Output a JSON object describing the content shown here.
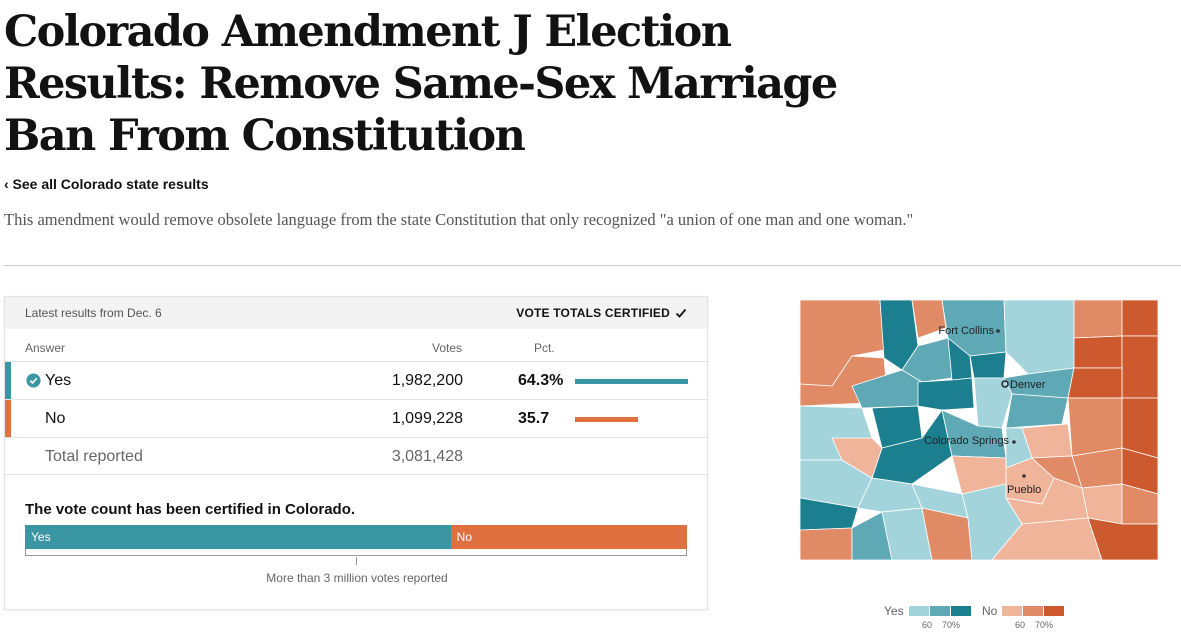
{
  "headline": "Colorado Amendment J Election Results: Remove Same-Sex Marriage Ban From Constitution",
  "back_link": "‹ See all Colorado state results",
  "summary": "This amendment would remove obsolete language from the state Constitution that only recognized \"a union of one man and one woman.\"",
  "card": {
    "latest": "Latest results from Dec. 6",
    "certified_label": "VOTE TOTALS CERTIFIED",
    "columns": {
      "answer": "Answer",
      "votes": "Votes",
      "pct": "Pct."
    },
    "rows": [
      {
        "answer": "Yes",
        "votes": "1,982,200",
        "pct": "64.3%",
        "pct_value": 64.3,
        "color": "#3a96a3",
        "winner": true
      },
      {
        "answer": "No",
        "votes": "1,099,228",
        "pct": "35.7",
        "pct_value": 35.7,
        "color": "#e0703f",
        "winner": false
      }
    ],
    "total": {
      "label": "Total reported",
      "votes": "3,081,428"
    },
    "certified_note": "The vote count has been certified in Colorado.",
    "bar": {
      "yes_label": "Yes",
      "no_label": "No",
      "yes_pct": 64.3,
      "no_pct": 35.7
    },
    "reported_note": "More than 3 million votes reported"
  },
  "map": {
    "cities": [
      {
        "name": "Fort Collins"
      },
      {
        "name": "Denver"
      },
      {
        "name": "Colorado Springs"
      },
      {
        "name": "Pueblo"
      }
    ]
  },
  "legend": {
    "yes_label": "Yes",
    "no_label": "No",
    "yes_colors": [
      "#a3d4dc",
      "#5fa9b6",
      "#1c7f8f"
    ],
    "no_colors": [
      "#f0b49a",
      "#e08a66",
      "#cd5a2f"
    ],
    "ticks": [
      "60",
      "70%"
    ]
  },
  "colors": {
    "yes": "#3a96a3",
    "no": "#e0703f"
  }
}
